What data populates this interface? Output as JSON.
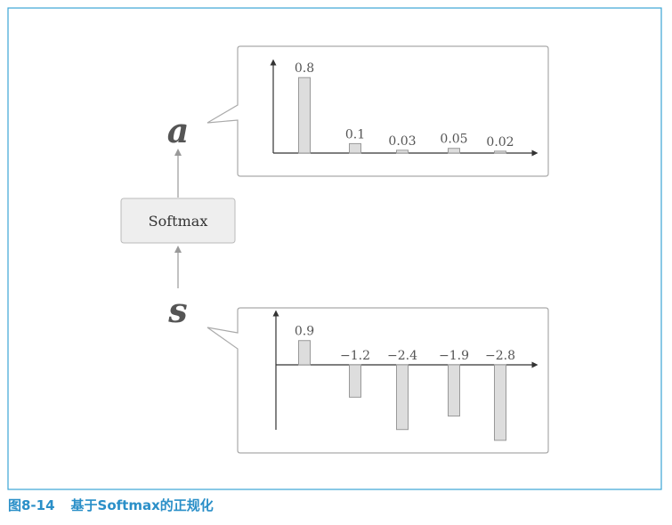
{
  "figure": {
    "number": "图8-14",
    "title": "基于Softmax的正规化"
  },
  "softmax_label": "Softmax",
  "input_var": "s",
  "output_var": "a",
  "chart_data": [
    {
      "type": "bar",
      "id": "output",
      "variable": "a",
      "values": [
        0.8,
        0.1,
        0.03,
        0.05,
        0.02
      ],
      "labels": [
        "0.8",
        "0.1",
        "0.03",
        "0.05",
        "0.02"
      ],
      "ylim": [
        0,
        0.8
      ],
      "grid": false
    },
    {
      "type": "bar",
      "id": "input",
      "variable": "s",
      "values": [
        0.9,
        -1.2,
        -2.4,
        -1.9,
        -2.8
      ],
      "labels": [
        "0.9",
        "−1.2",
        "−2.4",
        "−1.9",
        "−2.8"
      ],
      "ylim": [
        -2.8,
        0.9
      ],
      "grid": false
    }
  ]
}
